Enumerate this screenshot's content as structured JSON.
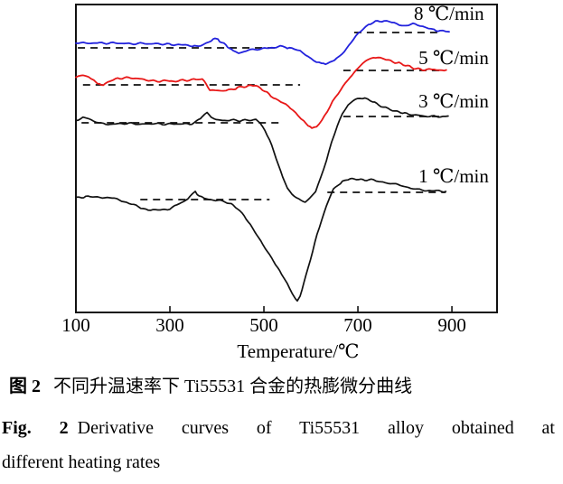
{
  "captions": {
    "zh_label": "图 2",
    "zh_text": "不同升温速率下 Ti55531 合金的热膨微分曲线",
    "en_label": "Fig. 2",
    "en_text": "Derivative curves of Ti55531 alloy obtained at",
    "en_text2": "different heating rates"
  },
  "chart_data": {
    "type": "line",
    "title": "",
    "xlabel": "Temperature/℃",
    "ylabel": "",
    "x_range": [
      100,
      996
    ],
    "y_range": [
      0,
      341
    ],
    "x_ticks": [
      100,
      300,
      500,
      700,
      900
    ],
    "grid": false,
    "y_axis_visible": false,
    "legend_position": "inline-right",
    "curve_color_black": "#111111",
    "series": [
      {
        "name": "8 ℃/min",
        "color": "#2222dd",
        "width": 1.8,
        "label_anchor": [
          819,
          331
        ],
        "baselines": [
          {
            "v": 293,
            "t1": 104,
            "t2": 529
          },
          {
            "v": 310,
            "t1": 692,
            "t2": 877
          }
        ],
        "points": [
          [
            100,
            298.5
          ],
          [
            121,
            298
          ],
          [
            140,
            298.5
          ],
          [
            160,
            298
          ],
          [
            179,
            298.5
          ],
          [
            198,
            298
          ],
          [
            217,
            297.5
          ],
          [
            237,
            298
          ],
          [
            256,
            297.5
          ],
          [
            275,
            297.5
          ],
          [
            294,
            297
          ],
          [
            313,
            296.5
          ],
          [
            333,
            296
          ],
          [
            348,
            295.5
          ],
          [
            356,
            294.5
          ],
          [
            365,
            296
          ],
          [
            377,
            298.5
          ],
          [
            388,
            301.5
          ],
          [
            396,
            303
          ],
          [
            402,
            302.5
          ],
          [
            410,
            299
          ],
          [
            419,
            296
          ],
          [
            427,
            292.5
          ],
          [
            435,
            290
          ],
          [
            446,
            288
          ],
          [
            458,
            289
          ],
          [
            467,
            290.5
          ],
          [
            481,
            291.5
          ],
          [
            492,
            292
          ],
          [
            506,
            292.5
          ],
          [
            521,
            293.5
          ],
          [
            535,
            294.5
          ],
          [
            546,
            293.5
          ],
          [
            554,
            293
          ],
          [
            565,
            291.5
          ],
          [
            577,
            289.5
          ],
          [
            589,
            285.5
          ],
          [
            600,
            281
          ],
          [
            612,
            277.5
          ],
          [
            623,
            275.8
          ],
          [
            631,
            275.5
          ],
          [
            640,
            276.5
          ],
          [
            650,
            279
          ],
          [
            660,
            283.5
          ],
          [
            671,
            289.5
          ],
          [
            681,
            296
          ],
          [
            691,
            302.5
          ],
          [
            701,
            309
          ],
          [
            711,
            314.5
          ],
          [
            722,
            319
          ],
          [
            733,
            321.5
          ],
          [
            746,
            322.8
          ],
          [
            756,
            323
          ],
          [
            766,
            322
          ],
          [
            777,
            320
          ],
          [
            788,
            318
          ],
          [
            798,
            317.5
          ],
          [
            808,
            318.8
          ],
          [
            817,
            319.3
          ],
          [
            827,
            318.5
          ],
          [
            838,
            317
          ],
          [
            850,
            315
          ],
          [
            862,
            313
          ],
          [
            875,
            311.5
          ],
          [
            887,
            311
          ],
          [
            894,
            310.8
          ]
        ]
      },
      {
        "name": "5 ℃/min",
        "color": "#e81818",
        "width": 1.8,
        "label_anchor": [
          829,
          282
        ],
        "baselines": [
          {
            "v": 252,
            "t1": 115,
            "t2": 577
          },
          {
            "v": 268,
            "t1": 669,
            "t2": 881
          }
        ],
        "points": [
          [
            100,
            261
          ],
          [
            115,
            262.5
          ],
          [
            127,
            260
          ],
          [
            138,
            257
          ],
          [
            146,
            253.5
          ],
          [
            154,
            252
          ],
          [
            162,
            253
          ],
          [
            173,
            256
          ],
          [
            185,
            258.5
          ],
          [
            198,
            259.5
          ],
          [
            212,
            260
          ],
          [
            231,
            259
          ],
          [
            250,
            257.5
          ],
          [
            269,
            256
          ],
          [
            288,
            256.5
          ],
          [
            308,
            256
          ],
          [
            327,
            257
          ],
          [
            346,
            257.5
          ],
          [
            360,
            258.5
          ],
          [
            369,
            258
          ],
          [
            377,
            254
          ],
          [
            385,
            245
          ],
          [
            396,
            246
          ],
          [
            408,
            244.5
          ],
          [
            419,
            245.5
          ],
          [
            431,
            246.5
          ],
          [
            444,
            249
          ],
          [
            458,
            250
          ],
          [
            471,
            251
          ],
          [
            483,
            250.5
          ],
          [
            492,
            249
          ],
          [
            502,
            245
          ],
          [
            515,
            240
          ],
          [
            531,
            235
          ],
          [
            546,
            230
          ],
          [
            562,
            224
          ],
          [
            573,
            218
          ],
          [
            585,
            212
          ],
          [
            594,
            207
          ],
          [
            602,
            204.5
          ],
          [
            612,
            206
          ],
          [
            623,
            213
          ],
          [
            635,
            223
          ],
          [
            646,
            234
          ],
          [
            658,
            243
          ],
          [
            669,
            251
          ],
          [
            683,
            260
          ],
          [
            696,
            268
          ],
          [
            710,
            276
          ],
          [
            723,
            280.5
          ],
          [
            733,
            282.5
          ],
          [
            742,
            282
          ],
          [
            754,
            280.5
          ],
          [
            765,
            279
          ],
          [
            779,
            277
          ],
          [
            792,
            275.5
          ],
          [
            806,
            273
          ],
          [
            819,
            270.5
          ],
          [
            833,
            269
          ],
          [
            846,
            268.5
          ],
          [
            862,
            269
          ],
          [
            875,
            268
          ],
          [
            888,
            268.5
          ]
        ]
      },
      {
        "name": "3 ℃/min",
        "color": "#111111",
        "width": 1.7,
        "label_anchor": [
          829,
          234
        ],
        "baselines": [
          {
            "v": 210,
            "t1": 112,
            "t2": 540
          },
          {
            "v": 217,
            "t1": 669,
            "t2": 881
          }
        ],
        "points": [
          [
            100,
            213
          ],
          [
            115,
            215.5
          ],
          [
            127,
            215
          ],
          [
            138,
            211
          ],
          [
            154,
            209
          ],
          [
            179,
            208.5
          ],
          [
            208,
            209.5
          ],
          [
            237,
            208.5
          ],
          [
            265,
            209
          ],
          [
            294,
            208.5
          ],
          [
            323,
            209
          ],
          [
            342,
            208.5
          ],
          [
            356,
            211
          ],
          [
            369,
            217.5
          ],
          [
            379,
            220.5
          ],
          [
            388,
            217
          ],
          [
            398,
            213.5
          ],
          [
            412,
            212.5
          ],
          [
            431,
            213
          ],
          [
            450,
            212.5
          ],
          [
            469,
            213
          ],
          [
            483,
            213.5
          ],
          [
            492,
            210
          ],
          [
            502,
            202
          ],
          [
            512,
            191
          ],
          [
            521,
            178
          ],
          [
            531,
            164
          ],
          [
            540,
            149
          ],
          [
            550,
            138
          ],
          [
            560,
            131
          ],
          [
            569,
            127
          ],
          [
            579,
            123.5
          ],
          [
            588,
            123
          ],
          [
            598,
            126
          ],
          [
            610,
            134
          ],
          [
            621,
            149
          ],
          [
            633,
            168
          ],
          [
            644,
            188
          ],
          [
            656,
            206
          ],
          [
            667,
            220
          ],
          [
            679,
            229
          ],
          [
            690,
            234.5
          ],
          [
            704,
            237.5
          ],
          [
            715,
            238
          ],
          [
            727,
            235
          ],
          [
            740,
            231
          ],
          [
            754,
            227.5
          ],
          [
            769,
            224.5
          ],
          [
            787,
            222
          ],
          [
            804,
            220
          ],
          [
            823,
            218.5
          ],
          [
            842,
            217.5
          ],
          [
            862,
            217
          ],
          [
            881,
            217
          ],
          [
            892,
            217.5
          ]
        ]
      },
      {
        "name": "1 ℃/min",
        "color": "#111111",
        "width": 1.7,
        "label_anchor": [
          829,
          151
        ],
        "baselines": [
          {
            "v": 125,
            "t1": 237,
            "t2": 512
          },
          {
            "v": 133,
            "t1": 635,
            "t2": 887
          }
        ],
        "points": [
          [
            100,
            128
          ],
          [
            112,
            127
          ],
          [
            121,
            129
          ],
          [
            131,
            127.5
          ],
          [
            146,
            128
          ],
          [
            162,
            127.5
          ],
          [
            177,
            126.5
          ],
          [
            192,
            125
          ],
          [
            208,
            122
          ],
          [
            223,
            119
          ],
          [
            238,
            116
          ],
          [
            254,
            114
          ],
          [
            269,
            113
          ],
          [
            285,
            113.5
          ],
          [
            300,
            115
          ],
          [
            315,
            119
          ],
          [
            329,
            123
          ],
          [
            338,
            125.5
          ],
          [
            348,
            131
          ],
          [
            354,
            134
          ],
          [
            362,
            129
          ],
          [
            373,
            126
          ],
          [
            387,
            125
          ],
          [
            402,
            124
          ],
          [
            417,
            122.5
          ],
          [
            431,
            120
          ],
          [
            444,
            115
          ],
          [
            458,
            107
          ],
          [
            471,
            97
          ],
          [
            485,
            86
          ],
          [
            498,
            75
          ],
          [
            512,
            64
          ],
          [
            525,
            53
          ],
          [
            538,
            42
          ],
          [
            550,
            31
          ],
          [
            560,
            22
          ],
          [
            567,
            14.5
          ],
          [
            571,
            13
          ],
          [
            577,
            19
          ],
          [
            585,
            32
          ],
          [
            594,
            50
          ],
          [
            604,
            68
          ],
          [
            613,
            86
          ],
          [
            623,
            103
          ],
          [
            633,
            118
          ],
          [
            640,
            128
          ],
          [
            648,
            136
          ],
          [
            658,
            141.5
          ],
          [
            667,
            145
          ],
          [
            679,
            147.5
          ],
          [
            692,
            148
          ],
          [
            706,
            147
          ],
          [
            719,
            146.5
          ],
          [
            733,
            147
          ],
          [
            744,
            145.5
          ],
          [
            758,
            143.5
          ],
          [
            769,
            141.5
          ],
          [
            781,
            142.5
          ],
          [
            794,
            140
          ],
          [
            808,
            138
          ],
          [
            821,
            136.5
          ],
          [
            837,
            135.5
          ],
          [
            852,
            135
          ],
          [
            867,
            134.5
          ],
          [
            887,
            134
          ]
        ]
      }
    ]
  }
}
